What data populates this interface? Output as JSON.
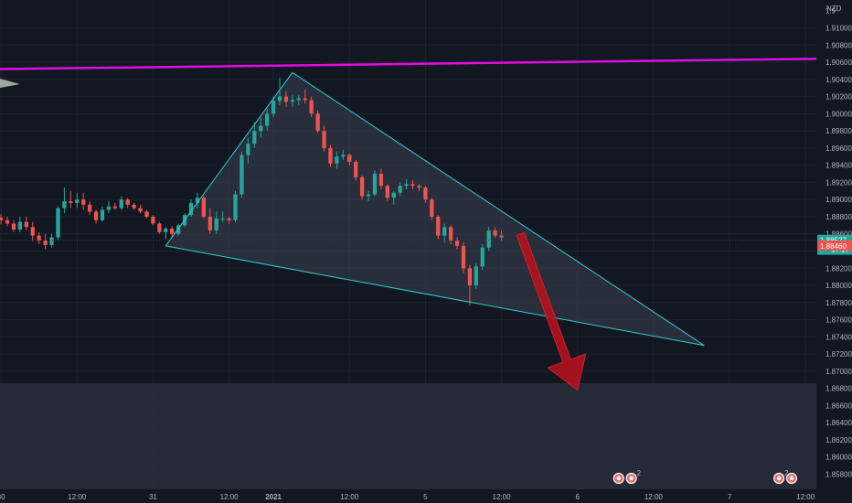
{
  "chart_data": {
    "type": "candlestick",
    "currency": "NZD",
    "ylim": [
      1.857,
      1.913
    ],
    "y_ticks": [
      "1.91000",
      "1.90800",
      "1.90600",
      "1.90400",
      "1.90200",
      "1.90000",
      "1.89800",
      "1.89600",
      "1.89400",
      "1.89200",
      "1.89000",
      "1.88800",
      "1.88600",
      "1.88400",
      "1.88200",
      "1.88000",
      "1.87800",
      "1.87600",
      "1.87400",
      "1.87200",
      "1.87000",
      "1.86800",
      "1.86600",
      "1.86400",
      "1.86200",
      "1.86000",
      "1.85800"
    ],
    "top_tick_partial": "1.9",
    "x_labels": [
      {
        "label": "30",
        "i": 0
      },
      {
        "label": "12:00",
        "i": 12
      },
      {
        "label": "31",
        "i": 24
      },
      {
        "label": "12:00",
        "i": 36
      },
      {
        "label": "2021",
        "i": 43,
        "bold": true
      },
      {
        "label": "12:00",
        "i": 55
      },
      {
        "label": "5",
        "i": 67
      },
      {
        "label": "12:00",
        "i": 79
      },
      {
        "label": "6",
        "i": 91
      },
      {
        "label": "12:00",
        "i": 103
      },
      {
        "label": "7",
        "i": 115
      },
      {
        "label": "12:00",
        "i": 127
      }
    ],
    "candles": [
      [
        1.8879,
        1.8883,
        1.8871,
        1.8876
      ],
      [
        1.8876,
        1.888,
        1.8869,
        1.8872
      ],
      [
        1.8872,
        1.8876,
        1.8862,
        1.8865
      ],
      [
        1.8865,
        1.888,
        1.8862,
        1.8874
      ],
      [
        1.8874,
        1.888,
        1.8864,
        1.8868
      ],
      [
        1.8868,
        1.8874,
        1.8852,
        1.8858
      ],
      [
        1.8858,
        1.8862,
        1.8848,
        1.8852
      ],
      [
        1.8852,
        1.886,
        1.8842,
        1.8847
      ],
      [
        1.8847,
        1.886,
        1.8844,
        1.8856
      ],
      [
        1.8856,
        1.8892,
        1.8852,
        1.889
      ],
      [
        1.889,
        1.8914,
        1.8884,
        1.8898
      ],
      [
        1.8898,
        1.891,
        1.889,
        1.8896
      ],
      [
        1.8896,
        1.8908,
        1.889,
        1.89
      ],
      [
        1.89,
        1.8908,
        1.8888,
        1.8894
      ],
      [
        1.8894,
        1.8898,
        1.8882,
        1.8886
      ],
      [
        1.8886,
        1.8888,
        1.8872,
        1.8876
      ],
      [
        1.8876,
        1.8892,
        1.8874,
        1.8888
      ],
      [
        1.8888,
        1.8898,
        1.8884,
        1.8892
      ],
      [
        1.8892,
        1.8896,
        1.8888,
        1.889
      ],
      [
        1.889,
        1.8904,
        1.8888,
        1.89
      ],
      [
        1.89,
        1.8902,
        1.889,
        1.8894
      ],
      [
        1.8894,
        1.8896,
        1.8888,
        1.889
      ],
      [
        1.889,
        1.8894,
        1.8884,
        1.8886
      ],
      [
        1.8886,
        1.8888,
        1.8878,
        1.888
      ],
      [
        1.888,
        1.8882,
        1.887,
        1.8872
      ],
      [
        1.8872,
        1.8874,
        1.886,
        1.8862
      ],
      [
        1.8862,
        1.8868,
        1.8854,
        1.8866
      ],
      [
        1.8866,
        1.8869,
        1.8856,
        1.886
      ],
      [
        1.886,
        1.8872,
        1.8858,
        1.887
      ],
      [
        1.887,
        1.8884,
        1.8868,
        1.8882
      ],
      [
        1.8882,
        1.89,
        1.888,
        1.8896
      ],
      [
        1.8896,
        1.8908,
        1.889,
        1.8902
      ],
      [
        1.8902,
        1.8904,
        1.8878,
        1.888
      ],
      [
        1.888,
        1.889,
        1.886,
        1.8864
      ],
      [
        1.8864,
        1.8886,
        1.886,
        1.8878
      ],
      [
        1.8878,
        1.8886,
        1.8874,
        1.8878
      ],
      [
        1.8878,
        1.888,
        1.8872,
        1.8876
      ],
      [
        1.8876,
        1.891,
        1.8874,
        1.8906
      ],
      [
        1.8906,
        1.8956,
        1.8902,
        1.8952
      ],
      [
        1.8952,
        1.8972,
        1.8942,
        1.8965
      ],
      [
        1.8965,
        1.899,
        1.896,
        1.898
      ],
      [
        1.898,
        1.8995,
        1.8972,
        1.8986
      ],
      [
        1.8986,
        1.9006,
        1.898,
        1.9
      ],
      [
        1.9,
        1.902,
        1.8996,
        1.9015
      ],
      [
        1.9015,
        1.9042,
        1.901,
        1.902
      ],
      [
        1.902,
        1.9026,
        1.9008,
        1.9014
      ],
      [
        1.9014,
        1.9022,
        1.9008,
        1.9016
      ],
      [
        1.9016,
        1.9022,
        1.901,
        1.9018
      ],
      [
        1.9018,
        1.9028,
        1.9012,
        1.9016
      ],
      [
        1.9016,
        1.902,
        1.8996,
        1.9
      ],
      [
        1.9,
        1.9004,
        1.8978,
        1.898
      ],
      [
        1.898,
        1.8986,
        1.8956,
        1.896
      ],
      [
        1.896,
        1.8964,
        1.8938,
        1.8942
      ],
      [
        1.8942,
        1.8956,
        1.8936,
        1.895
      ],
      [
        1.895,
        1.8958,
        1.8946,
        1.8952
      ],
      [
        1.8952,
        1.8954,
        1.894,
        1.8944
      ],
      [
        1.8944,
        1.8946,
        1.8922,
        1.8926
      ],
      [
        1.8926,
        1.8928,
        1.89,
        1.8904
      ],
      [
        1.8904,
        1.891,
        1.8898,
        1.8906
      ],
      [
        1.8906,
        1.8934,
        1.8904,
        1.893
      ],
      [
        1.893,
        1.8936,
        1.8912,
        1.8916
      ],
      [
        1.8916,
        1.8918,
        1.8898,
        1.8902
      ],
      [
        1.8902,
        1.891,
        1.8894,
        1.8908
      ],
      [
        1.8908,
        1.892,
        1.8904,
        1.8916
      ],
      [
        1.8916,
        1.8924,
        1.8912,
        1.8918
      ],
      [
        1.8918,
        1.8923,
        1.8912,
        1.8916
      ],
      [
        1.8916,
        1.8918,
        1.891,
        1.8914
      ],
      [
        1.8914,
        1.8916,
        1.8896,
        1.89
      ],
      [
        1.89,
        1.8902,
        1.8876,
        1.888
      ],
      [
        1.888,
        1.8882,
        1.8854,
        1.8858
      ],
      [
        1.8858,
        1.8872,
        1.885,
        1.8868
      ],
      [
        1.8868,
        1.887,
        1.8848,
        1.8852
      ],
      [
        1.8852,
        1.8856,
        1.8842,
        1.8846
      ],
      [
        1.8846,
        1.885,
        1.8814,
        1.882
      ],
      [
        1.882,
        1.8824,
        1.8776,
        1.88
      ],
      [
        1.88,
        1.8826,
        1.8796,
        1.8822
      ],
      [
        1.8822,
        1.8848,
        1.8818,
        1.8844
      ],
      [
        1.8844,
        1.8868,
        1.884,
        1.8864
      ],
      [
        1.8864,
        1.8868,
        1.8856,
        1.8858
      ],
      [
        1.8858,
        1.8864,
        1.8852,
        1.8856
      ]
    ],
    "x_start": 1.1,
    "x_step": 6.93,
    "last_price": "1.88527",
    "countdown": "17:17",
    "other_price": "1.88460",
    "resistance_line": {
      "start": 1.9052,
      "end": 1.9064
    },
    "triangle": {
      "apex_i": 46,
      "apex_y": 1.9048,
      "left_i": 26,
      "left_y": 1.8846,
      "right_i": 111,
      "right_y": 1.873
    },
    "forecast_arrow": {
      "from_i": 82,
      "from_y": 1.886,
      "to_i": 91,
      "to_y": 1.8678
    },
    "support_zone": {
      "top": 1.8686,
      "bottom": 1.856
    },
    "event_badges": [
      {
        "i": 97.5,
        "count": ""
      },
      {
        "i": 99.5,
        "count": "2"
      },
      {
        "i": 122.8,
        "count": "2"
      },
      {
        "i": 124.8,
        "count": ""
      }
    ],
    "colors": {
      "background": "#131722",
      "grid": "#1e2230",
      "text": "#b2b5be",
      "up": "#26a69a",
      "down": "#ef5350",
      "resistance": "#e30ce0",
      "triangle": "#2ed0cd",
      "triangle_fill": "#3a4150",
      "zone": "#2a2e39",
      "arrow": "#b5121b",
      "last_price_bg": "#26a69a",
      "other_price_bg": "#ef5350"
    }
  }
}
